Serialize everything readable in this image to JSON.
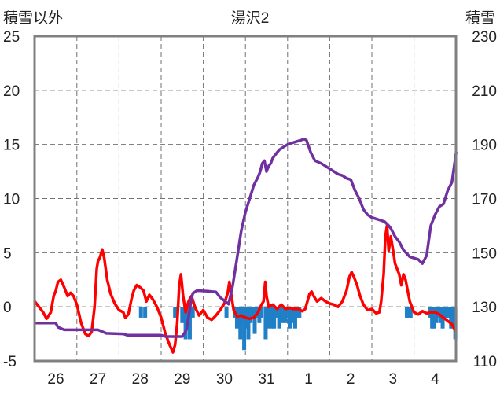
{
  "chart_data": {
    "type": "line",
    "title": "湯沢2",
    "left_axis_title": "積雪以外",
    "right_axis_title": "積雪",
    "x_tick_labels": [
      "26",
      "27",
      "28",
      "29",
      "30",
      "31",
      "1",
      "2",
      "3",
      "4"
    ],
    "y_left": {
      "range": [
        -5,
        25
      ],
      "ticks": [
        "-5",
        "0",
        "5",
        "10",
        "15",
        "20",
        "25"
      ]
    },
    "y_right": {
      "range": [
        110,
        230
      ],
      "ticks": [
        "110",
        "130",
        "150",
        "170",
        "190",
        "210",
        "230"
      ]
    },
    "grid": "dashed",
    "colors": {
      "temperature": "#ff0000",
      "precipitation": "#1f7fc7",
      "snow_depth": "#7030a0",
      "frame": "#808080",
      "grid": "#707070"
    },
    "x_unit": "day_index",
    "series": [
      {
        "key": "temperature",
        "axis": "left",
        "style": "line",
        "points": [
          [
            -0.5,
            0.5
          ],
          [
            -0.42,
            0.1
          ],
          [
            -0.3,
            -0.5
          ],
          [
            -0.22,
            -1.1
          ],
          [
            -0.12,
            -0.5
          ],
          [
            -0.05,
            1.0
          ],
          [
            0.0,
            1.5
          ],
          [
            0.05,
            2.3
          ],
          [
            0.12,
            2.5
          ],
          [
            0.2,
            1.8
          ],
          [
            0.28,
            1.0
          ],
          [
            0.35,
            1.3
          ],
          [
            0.42,
            1.0
          ],
          [
            0.5,
            0.2
          ],
          [
            0.6,
            -1.5
          ],
          [
            0.7,
            -2.5
          ],
          [
            0.78,
            -2.7
          ],
          [
            0.85,
            -2.3
          ],
          [
            0.92,
            0.0
          ],
          [
            0.97,
            3.5
          ],
          [
            1.0,
            4.2
          ],
          [
            1.05,
            4.6
          ],
          [
            1.1,
            5.3
          ],
          [
            1.15,
            4.5
          ],
          [
            1.22,
            2.5
          ],
          [
            1.3,
            1.2
          ],
          [
            1.4,
            0.3
          ],
          [
            1.5,
            -0.3
          ],
          [
            1.6,
            -0.5
          ],
          [
            1.65,
            -1.0
          ],
          [
            1.72,
            -0.7
          ],
          [
            1.8,
            0.8
          ],
          [
            1.85,
            1.5
          ],
          [
            1.92,
            2.0
          ],
          [
            2.0,
            1.8
          ],
          [
            2.08,
            1.5
          ],
          [
            2.15,
            0.5
          ],
          [
            2.22,
            1.1
          ],
          [
            2.3,
            0.7
          ],
          [
            2.4,
            0.0
          ],
          [
            2.5,
            -1.0
          ],
          [
            2.6,
            -2.5
          ],
          [
            2.7,
            -3.5
          ],
          [
            2.78,
            -4.2
          ],
          [
            2.83,
            -3.5
          ],
          [
            2.88,
            -1.5
          ],
          [
            2.93,
            2.0
          ],
          [
            2.97,
            3.0
          ],
          [
            3.02,
            1.0
          ],
          [
            3.08,
            -0.5
          ],
          [
            3.15,
            0.5
          ],
          [
            3.22,
            1.0
          ],
          [
            3.3,
            0.0
          ],
          [
            3.4,
            -0.8
          ],
          [
            3.5,
            -0.3
          ],
          [
            3.6,
            -1.0
          ],
          [
            3.7,
            -1.2
          ],
          [
            3.8,
            -0.8
          ],
          [
            3.9,
            -0.3
          ],
          [
            4.0,
            0.3
          ],
          [
            4.08,
            1.3
          ],
          [
            4.12,
            2.3
          ],
          [
            4.15,
            1.5
          ],
          [
            4.22,
            -0.3
          ],
          [
            4.3,
            -0.9
          ],
          [
            4.4,
            -0.8
          ],
          [
            4.5,
            -1.0
          ],
          [
            4.6,
            -1.1
          ],
          [
            4.7,
            -1.0
          ],
          [
            4.8,
            -0.5
          ],
          [
            4.88,
            0.2
          ],
          [
            4.93,
            0.5
          ],
          [
            4.97,
            2.3
          ],
          [
            5.0,
            1.0
          ],
          [
            5.05,
            0.0
          ],
          [
            5.15,
            0.2
          ],
          [
            5.25,
            -0.2
          ],
          [
            5.35,
            0.2
          ],
          [
            5.45,
            -0.2
          ],
          [
            5.55,
            -0.1
          ],
          [
            5.65,
            -0.2
          ],
          [
            5.75,
            -0.2
          ],
          [
            5.85,
            -0.4
          ],
          [
            5.92,
            -0.2
          ],
          [
            5.97,
            0.5
          ],
          [
            6.02,
            1.2
          ],
          [
            6.07,
            1.4
          ],
          [
            6.12,
            1.0
          ],
          [
            6.2,
            0.5
          ],
          [
            6.3,
            0.8
          ],
          [
            6.4,
            0.5
          ],
          [
            6.5,
            0.3
          ],
          [
            6.6,
            0.2
          ],
          [
            6.7,
            0.0
          ],
          [
            6.8,
            0.5
          ],
          [
            6.9,
            1.5
          ],
          [
            6.97,
            2.8
          ],
          [
            7.02,
            3.2
          ],
          [
            7.08,
            2.7
          ],
          [
            7.15,
            2.0
          ],
          [
            7.22,
            1.0
          ],
          [
            7.3,
            0.2
          ],
          [
            7.4,
            -0.3
          ],
          [
            7.5,
            -0.2
          ],
          [
            7.6,
            -0.6
          ],
          [
            7.68,
            -0.5
          ],
          [
            7.72,
            0.5
          ],
          [
            7.78,
            3.0
          ],
          [
            7.82,
            6.5
          ],
          [
            7.86,
            7.5
          ],
          [
            7.9,
            5.2
          ],
          [
            7.95,
            6.5
          ],
          [
            8.0,
            5.3
          ],
          [
            8.05,
            4.0
          ],
          [
            8.15,
            3.0
          ],
          [
            8.2,
            2.0
          ],
          [
            8.25,
            3.0
          ],
          [
            8.3,
            2.5
          ],
          [
            8.4,
            0.5
          ],
          [
            8.5,
            -0.5
          ],
          [
            8.6,
            -0.7
          ],
          [
            8.7,
            -0.4
          ],
          [
            8.8,
            -0.6
          ],
          [
            8.9,
            -0.5
          ],
          [
            9.0,
            -0.5
          ],
          [
            9.1,
            -0.7
          ],
          [
            9.2,
            -1.0
          ],
          [
            9.3,
            -1.3
          ],
          [
            9.4,
            -1.6
          ],
          [
            9.48,
            -2.2
          ]
        ]
      },
      {
        "key": "snow_depth",
        "axis": "right",
        "style": "line",
        "points": [
          [
            -0.5,
            124
          ],
          [
            0.0,
            124
          ],
          [
            0.05,
            122.5
          ],
          [
            0.2,
            121.5
          ],
          [
            1.0,
            121.5
          ],
          [
            1.2,
            120.2
          ],
          [
            1.6,
            120
          ],
          [
            1.7,
            119.5
          ],
          [
            2.5,
            119.5
          ],
          [
            2.6,
            119
          ],
          [
            3.0,
            119
          ],
          [
            3.1,
            121.5
          ],
          [
            3.2,
            131
          ],
          [
            3.25,
            135
          ],
          [
            3.35,
            136
          ],
          [
            3.6,
            135.8
          ],
          [
            3.8,
            135.5
          ],
          [
            3.9,
            133.5
          ],
          [
            4.1,
            131
          ],
          [
            4.2,
            138
          ],
          [
            4.3,
            148
          ],
          [
            4.4,
            158
          ],
          [
            4.5,
            165
          ],
          [
            4.6,
            170
          ],
          [
            4.7,
            175
          ],
          [
            4.8,
            178
          ],
          [
            4.85,
            180
          ],
          [
            4.9,
            183
          ],
          [
            4.95,
            184
          ],
          [
            5.0,
            180
          ],
          [
            5.05,
            182
          ],
          [
            5.1,
            183
          ],
          [
            5.15,
            185
          ],
          [
            5.2,
            186
          ],
          [
            5.3,
            188
          ],
          [
            5.4,
            189
          ],
          [
            5.5,
            190
          ],
          [
            5.6,
            190.5
          ],
          [
            5.7,
            191
          ],
          [
            5.8,
            191.5
          ],
          [
            5.9,
            192
          ],
          [
            5.95,
            191.5
          ],
          [
            6.05,
            187
          ],
          [
            6.15,
            184
          ],
          [
            6.3,
            183
          ],
          [
            6.4,
            182
          ],
          [
            6.55,
            180.5
          ],
          [
            6.7,
            179
          ],
          [
            6.8,
            178.5
          ],
          [
            6.9,
            177.5
          ],
          [
            7.0,
            177
          ],
          [
            7.05,
            175
          ],
          [
            7.1,
            173
          ],
          [
            7.2,
            170
          ],
          [
            7.3,
            166
          ],
          [
            7.4,
            164
          ],
          [
            7.5,
            163
          ],
          [
            7.6,
            162.5
          ],
          [
            7.7,
            162
          ],
          [
            7.8,
            161.5
          ],
          [
            7.9,
            160
          ],
          [
            7.95,
            159
          ],
          [
            8.05,
            156
          ],
          [
            8.15,
            154
          ],
          [
            8.25,
            151
          ],
          [
            8.4,
            148.5
          ],
          [
            8.5,
            148
          ],
          [
            8.6,
            147.5
          ],
          [
            8.7,
            146
          ],
          [
            8.8,
            149
          ],
          [
            8.9,
            160
          ],
          [
            9.0,
            164
          ],
          [
            9.1,
            167
          ],
          [
            9.2,
            168
          ],
          [
            9.3,
            173
          ],
          [
            9.4,
            176
          ],
          [
            9.5,
            187
          ]
        ]
      },
      {
        "key": "precipitation",
        "axis": "left",
        "style": "bar",
        "points": [
          [
            2.02,
            -1
          ],
          [
            2.12,
            -1
          ],
          [
            2.83,
            -1
          ],
          [
            3.0,
            -1.5
          ],
          [
            3.08,
            -3
          ],
          [
            3.14,
            -1
          ],
          [
            3.18,
            -3
          ],
          [
            3.25,
            -1
          ],
          [
            4.05,
            -1
          ],
          [
            4.25,
            -1
          ],
          [
            4.3,
            -2
          ],
          [
            4.38,
            -3
          ],
          [
            4.42,
            -1.5
          ],
          [
            4.47,
            -4
          ],
          [
            4.52,
            -2
          ],
          [
            4.57,
            -3
          ],
          [
            4.62,
            -1.5
          ],
          [
            4.68,
            -1
          ],
          [
            4.72,
            -2.5
          ],
          [
            4.78,
            -1
          ],
          [
            4.83,
            -1.5
          ],
          [
            4.88,
            -1
          ],
          [
            4.98,
            -3
          ],
          [
            5.03,
            -2
          ],
          [
            5.08,
            -1.5
          ],
          [
            5.12,
            -2
          ],
          [
            5.18,
            -2
          ],
          [
            5.23,
            -1
          ],
          [
            5.3,
            -2
          ],
          [
            5.38,
            -1.5
          ],
          [
            5.45,
            -1.5
          ],
          [
            5.5,
            -1
          ],
          [
            5.55,
            -2
          ],
          [
            5.6,
            -1.5
          ],
          [
            5.68,
            -2
          ],
          [
            5.72,
            -1
          ],
          [
            5.78,
            -1
          ],
          [
            8.33,
            -1
          ],
          [
            8.38,
            -1
          ],
          [
            8.42,
            -1
          ],
          [
            8.88,
            -1
          ],
          [
            8.93,
            -2
          ],
          [
            8.98,
            -2
          ],
          [
            9.03,
            -1.5
          ],
          [
            9.08,
            -1
          ],
          [
            9.13,
            -1.5
          ],
          [
            9.18,
            -2
          ],
          [
            9.22,
            -1
          ],
          [
            9.28,
            -1
          ],
          [
            9.33,
            -1
          ],
          [
            9.38,
            -2
          ],
          [
            9.43,
            -2
          ],
          [
            9.48,
            -3
          ]
        ]
      }
    ]
  }
}
